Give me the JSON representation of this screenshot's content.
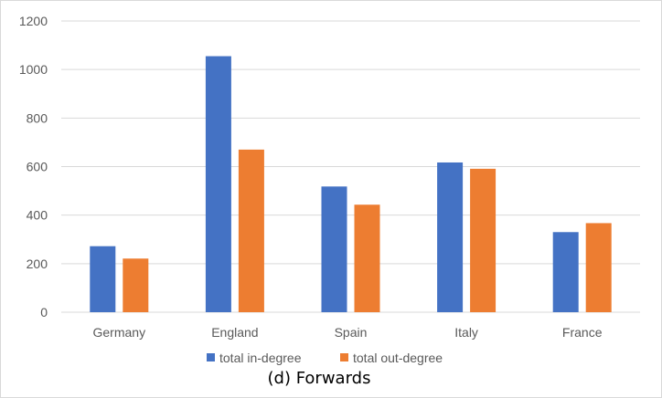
{
  "chart_data": {
    "type": "bar",
    "categories": [
      "Germany",
      "England",
      "Spain",
      "Italy",
      "France"
    ],
    "series": [
      {
        "name": "total in-degree",
        "values": [
          272,
          1055,
          518,
          617,
          330
        ],
        "color": "#4472c4"
      },
      {
        "name": "total out-degree",
        "values": [
          221,
          670,
          443,
          591,
          367
        ],
        "color": "#ed7d31"
      }
    ],
    "y_ticks": [
      "0",
      "200",
      "400",
      "600",
      "800",
      "1000",
      "1200"
    ],
    "ylim": [
      0,
      1200
    ],
    "grid": true,
    "legend_position": "bottom",
    "caption": "(d) Forwards"
  }
}
